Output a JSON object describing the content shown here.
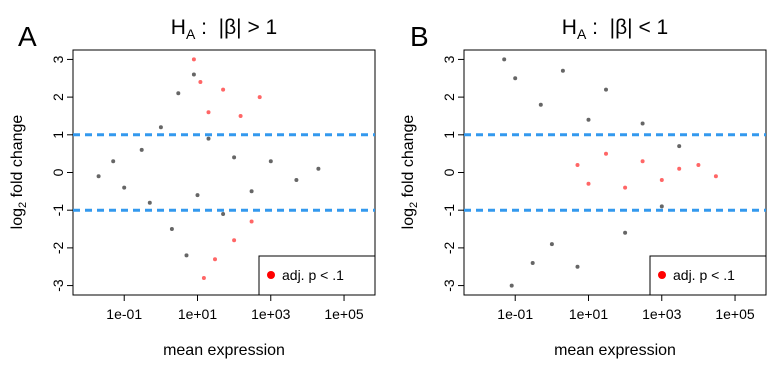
{
  "chart_data": [
    {
      "type": "scatter",
      "panel_letter": "A",
      "title": "H_A : |β| > 1",
      "title_parts": {
        "h": "H",
        "sub": "A",
        "rest": " :  |β| > 1"
      },
      "xlabel": "mean expression",
      "ylabel": "log2 fold change",
      "ylabel_parts": {
        "pre": "log",
        "sub": "2",
        "post": " fold change"
      },
      "x_scale": "log10",
      "xlim": [
        0.004,
        700000
      ],
      "ylim": [
        -3.25,
        3.25
      ],
      "x_ticks": [
        0.1,
        10,
        1000,
        100000
      ],
      "x_tick_labels": [
        "1e-01",
        "1e+01",
        "1e+03",
        "1e+05"
      ],
      "y_ticks": [
        -3,
        -2,
        -1,
        0,
        1,
        2,
        3
      ],
      "y_tick_labels": [
        "-3",
        "-2",
        "-1",
        "0",
        "1",
        "2",
        "3"
      ],
      "reference_lines": [
        {
          "y": 1,
          "style": "dashed",
          "color": "#3399ee"
        },
        {
          "y": -1,
          "style": "dashed",
          "color": "#3399ee"
        }
      ],
      "series": [
        {
          "color": "#000000",
          "marker": "circle",
          "description": "all genes",
          "points": [
            [
              0.02,
              -0.1
            ],
            [
              0.05,
              0.3
            ],
            [
              0.1,
              -0.4
            ],
            [
              0.3,
              0.6
            ],
            [
              0.5,
              -0.8
            ],
            [
              1,
              1.2
            ],
            [
              2,
              -1.5
            ],
            [
              3,
              2.1
            ],
            [
              5,
              -2.2
            ],
            [
              8,
              2.6
            ],
            [
              10,
              -0.6
            ],
            [
              20,
              0.9
            ],
            [
              50,
              -1.1
            ],
            [
              100,
              0.4
            ],
            [
              300,
              -0.5
            ],
            [
              1000,
              0.3
            ],
            [
              5000,
              -0.2
            ],
            [
              20000,
              0.1
            ]
          ]
        },
        {
          "color": "#ff0000",
          "marker": "circle",
          "description": "adj. p < .1",
          "points": [
            [
              8,
              3
            ],
            [
              12,
              2.4
            ],
            [
              15,
              -2.8
            ],
            [
              20,
              1.6
            ],
            [
              30,
              -2.3
            ],
            [
              50,
              2.2
            ],
            [
              100,
              -1.8
            ],
            [
              150,
              1.5
            ],
            [
              300,
              -1.3
            ],
            [
              500,
              2
            ]
          ]
        }
      ],
      "legend": {
        "position": "bottom-right",
        "entries": [
          {
            "label": "adj. p < .1",
            "color": "#ff0000"
          }
        ]
      }
    },
    {
      "type": "scatter",
      "panel_letter": "B",
      "title": "H_A : |β| < 1",
      "title_parts": {
        "h": "H",
        "sub": "A",
        "rest": " :  |β| < 1"
      },
      "xlabel": "mean expression",
      "ylabel": "log2 fold change",
      "ylabel_parts": {
        "pre": "log",
        "sub": "2",
        "post": " fold change"
      },
      "x_scale": "log10",
      "xlim": [
        0.004,
        700000
      ],
      "ylim": [
        -3.25,
        3.25
      ],
      "x_ticks": [
        0.1,
        10,
        1000,
        100000
      ],
      "x_tick_labels": [
        "1e-01",
        "1e+01",
        "1e+03",
        "1e+05"
      ],
      "y_ticks": [
        -3,
        -2,
        -1,
        0,
        1,
        2,
        3
      ],
      "y_tick_labels": [
        "-3",
        "-2",
        "-1",
        "0",
        "1",
        "2",
        "3"
      ],
      "reference_lines": [
        {
          "y": 1,
          "style": "dashed",
          "color": "#3399ee"
        },
        {
          "y": -1,
          "style": "dashed",
          "color": "#3399ee"
        }
      ],
      "series": [
        {
          "color": "#000000",
          "marker": "circle",
          "description": "all genes",
          "points": [
            [
              0.05,
              3
            ],
            [
              0.08,
              -3
            ],
            [
              0.1,
              2.5
            ],
            [
              0.3,
              -2.4
            ],
            [
              0.5,
              1.8
            ],
            [
              1,
              -1.9
            ],
            [
              2,
              2.7
            ],
            [
              5,
              -2.5
            ],
            [
              10,
              1.4
            ],
            [
              30,
              2.2
            ],
            [
              100,
              -1.6
            ],
            [
              300,
              1.3
            ],
            [
              1000,
              -0.9
            ],
            [
              3000,
              0.7
            ]
          ]
        },
        {
          "color": "#ff0000",
          "marker": "circle",
          "description": "adj. p < .1",
          "points": [
            [
              5,
              0.2
            ],
            [
              10,
              -0.3
            ],
            [
              30,
              0.5
            ],
            [
              100,
              -0.4
            ],
            [
              300,
              0.3
            ],
            [
              1000,
              -0.2
            ],
            [
              3000,
              0.1
            ],
            [
              10000,
              0.2
            ],
            [
              30000,
              -0.1
            ]
          ]
        }
      ],
      "legend": {
        "position": "bottom-right",
        "entries": [
          {
            "label": "adj. p < .1",
            "color": "#ff0000"
          }
        ]
      }
    }
  ]
}
